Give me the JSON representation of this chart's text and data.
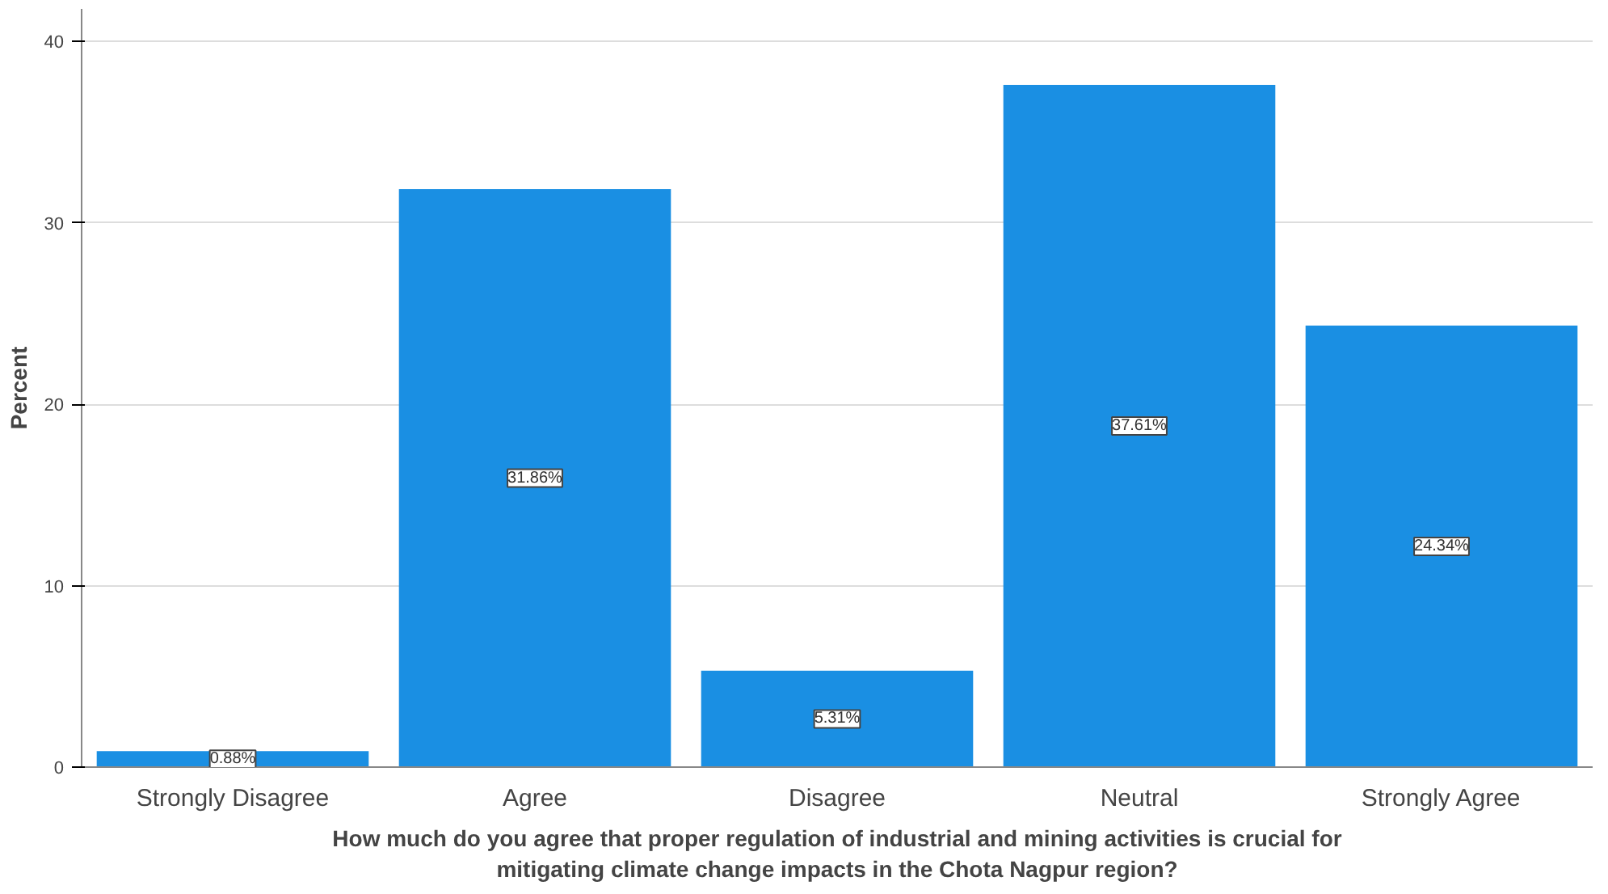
{
  "chart_data": {
    "type": "bar",
    "ylabel": "Percent",
    "xlabel": "How much do you agree that proper regulation of industrial and mining activities is crucial for mitigating climate change impacts in the Chota Nagpur region?",
    "categories": [
      "Strongly Disagree",
      "Agree",
      "Disagree",
      "Neutral",
      "Strongly Agree"
    ],
    "values": [
      0.88,
      31.86,
      5.31,
      37.61,
      24.34
    ],
    "value_labels": [
      "0.88%",
      "31.86%",
      "5.31%",
      "37.61%",
      "24.34%"
    ],
    "color": "#1a8fe3",
    "ylim": [
      0,
      41.8
    ],
    "yticks": [
      0,
      10,
      20,
      30,
      40
    ],
    "grid": "y"
  }
}
